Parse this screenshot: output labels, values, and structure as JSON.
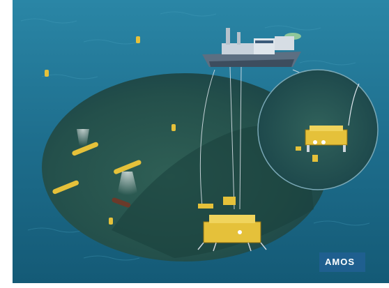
{
  "logo": {
    "text": "AMOS"
  },
  "colors": {
    "ocean_top": "#1d6f8f",
    "ocean_bottom": "#0f4f69",
    "seabed": "#1e4b46",
    "vehicle_yellow": "#e5c13a",
    "logo_box": "#1f5f8f",
    "ship_hull": "#5c6f82"
  },
  "icons": [
    "research-vessel-icon",
    "auv-icon",
    "rov-icon",
    "seabed-station-icon",
    "buoy-icon"
  ]
}
